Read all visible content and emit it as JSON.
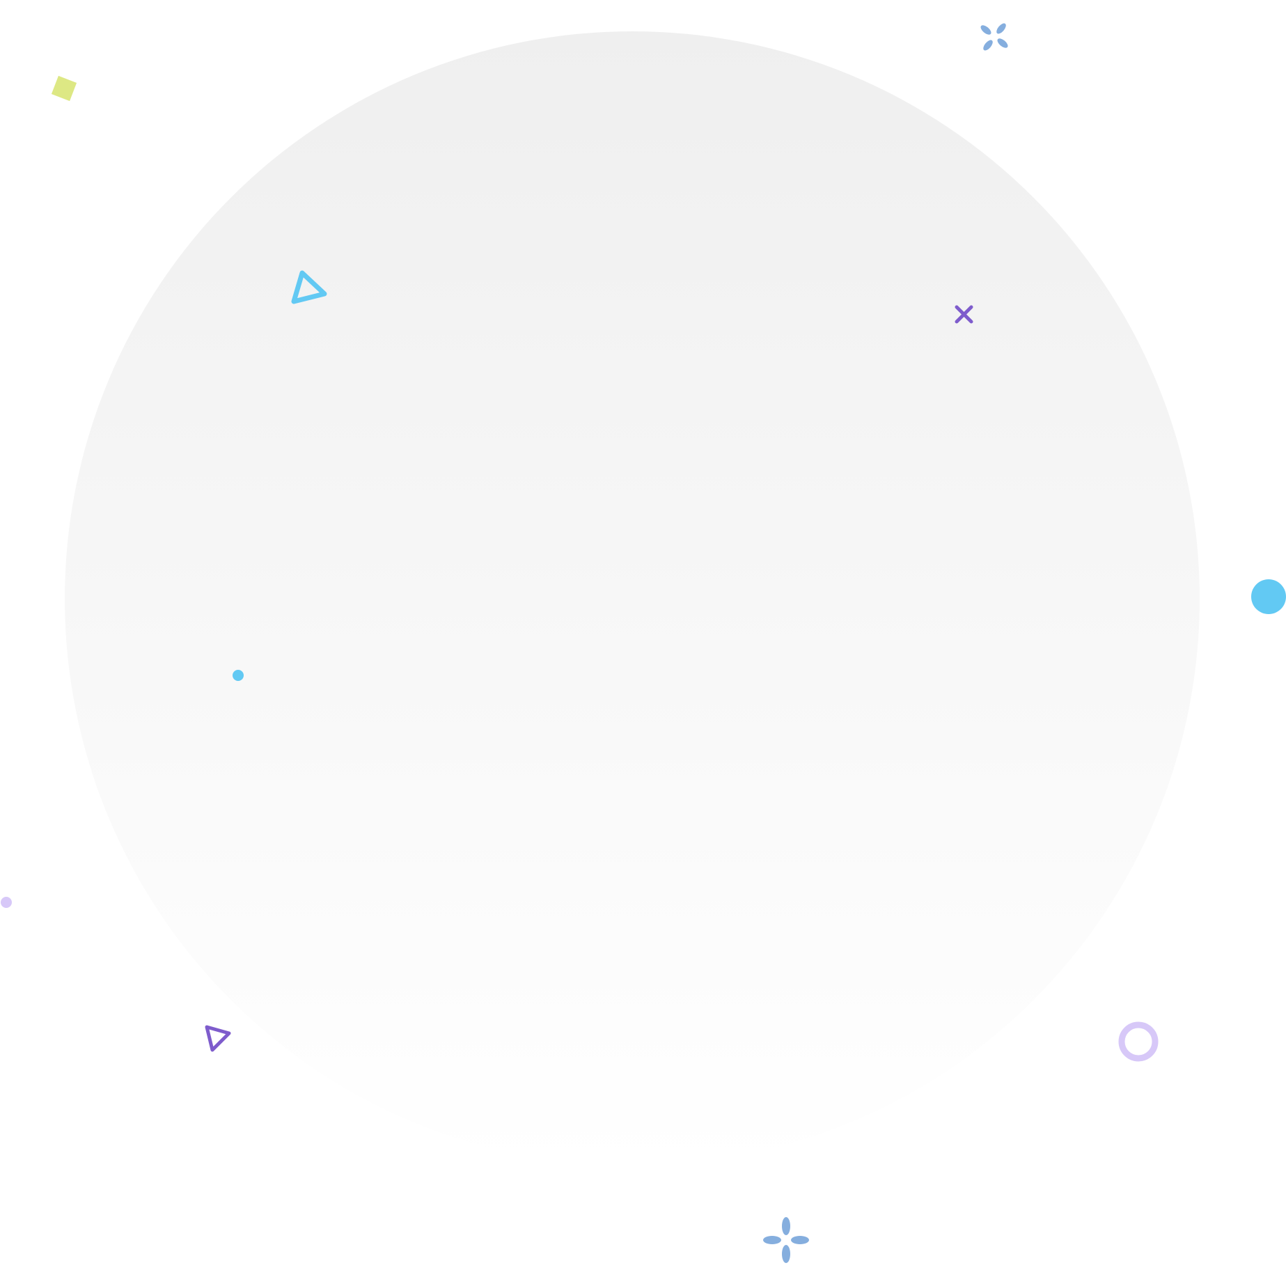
{
  "background": {
    "page_color": "#ffffff",
    "circle_gradient_top": "#efefef",
    "circle_gradient_bottom": "#ffffff"
  },
  "decorations": {
    "colors": {
      "cyan": "#62c9f3",
      "purple": "#7e5ccc",
      "lavender": "#d7c8f8",
      "steel_blue": "#85aede",
      "lime": "#dde884"
    },
    "icons": [
      "lime-square-icon",
      "blue-petal-cluster-icon",
      "cyan-triangle-outline-icon",
      "purple-cross-icon",
      "cyan-dot-icon",
      "small-cyan-dot-icon",
      "lavender-dot-icon",
      "purple-triangle-outline-icon",
      "lavender-ring-icon",
      "blue-sparkle-icon"
    ]
  }
}
